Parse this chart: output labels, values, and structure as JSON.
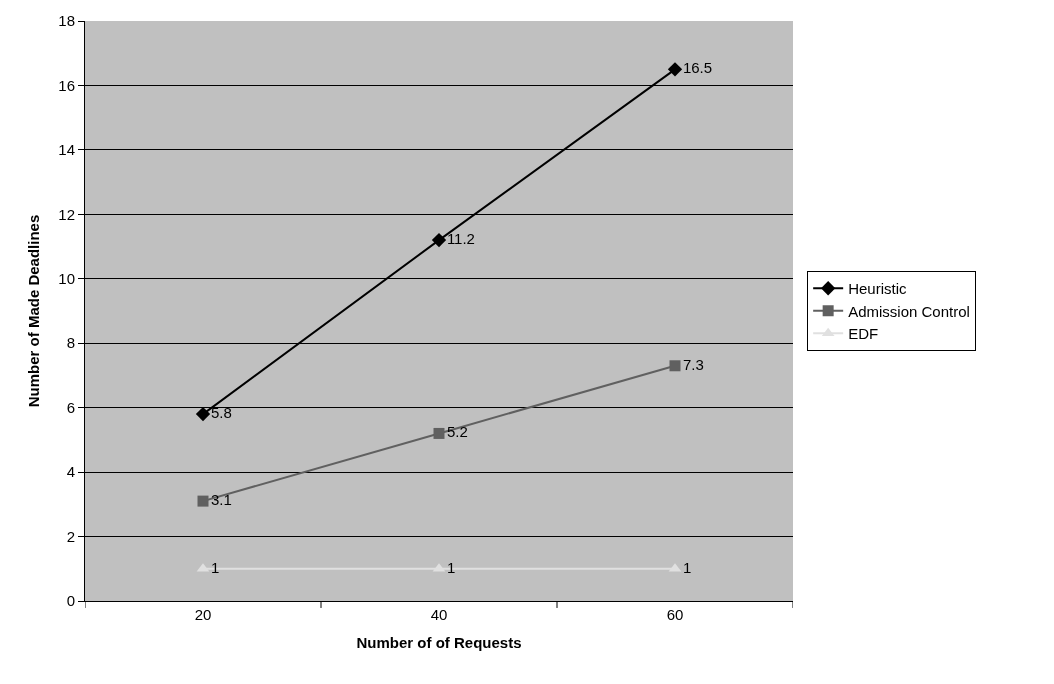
{
  "chart_data": {
    "type": "line",
    "xlabel": "Number of of Requests",
    "ylabel": "Number of Made Deadlines",
    "categories": [
      "20",
      "40",
      "60"
    ],
    "series": [
      {
        "name": "Heuristic",
        "color": "#000000",
        "marker": "diamond",
        "values": [
          5.8,
          11.2,
          16.5
        ]
      },
      {
        "name": "Admission Control",
        "color": "#606060",
        "marker": "square",
        "values": [
          3.1,
          5.2,
          7.3
        ]
      },
      {
        "name": "EDF",
        "color": "#e0e0e0",
        "marker": "triangle",
        "values": [
          1,
          1,
          1
        ]
      }
    ],
    "ylim": [
      0,
      18
    ],
    "yticks": [
      0,
      2,
      4,
      6,
      8,
      10,
      12,
      14,
      16,
      18
    ],
    "grid": "y",
    "legend": "right",
    "data_labels": true,
    "line_style": "solid"
  }
}
